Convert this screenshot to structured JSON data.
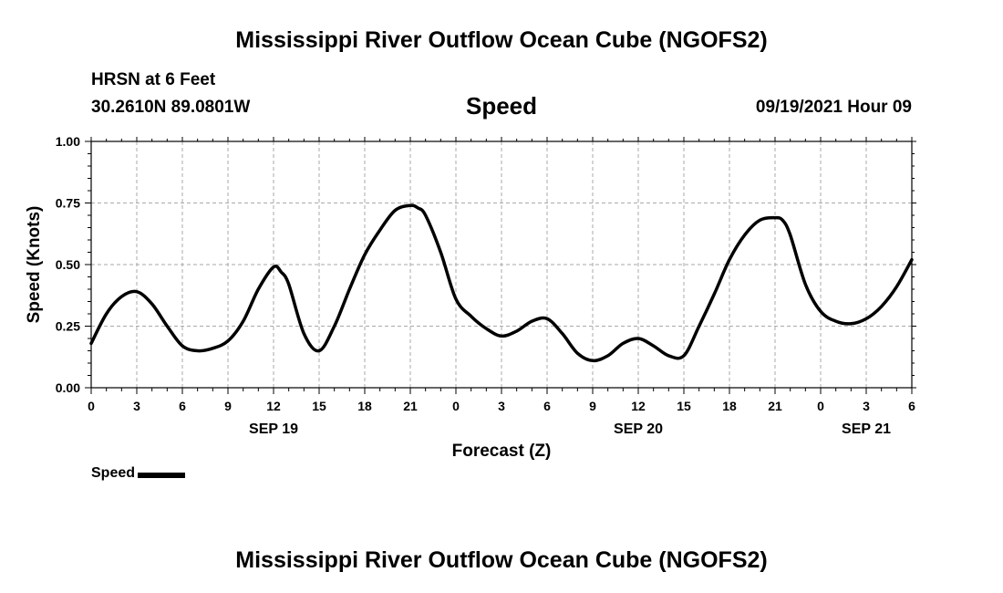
{
  "header": {
    "title": "Mississippi River Outflow Ocean Cube (NGOFS2)",
    "station": "HRSN at 6 Feet",
    "coords": "30.2610N  89.0801W",
    "chart_title": "Speed",
    "datetime": "09/19/2021 Hour 09"
  },
  "footer": {
    "title": "Mississippi River Outflow Ocean Cube (NGOFS2)"
  },
  "legend": {
    "label": "Speed",
    "color": "#000000"
  },
  "chart_data": {
    "type": "line",
    "title": "Speed",
    "xlabel": "Forecast (Z)",
    "ylabel": "Speed (Knots)",
    "xlim": [
      0,
      54
    ],
    "ylim": [
      0.0,
      1.0
    ],
    "yticks": [
      "0.00",
      "0.25",
      "0.50",
      "0.75",
      "1.00"
    ],
    "xticks": [
      {
        "x": 0,
        "label": "0"
      },
      {
        "x": 3,
        "label": "3"
      },
      {
        "x": 6,
        "label": "6"
      },
      {
        "x": 9,
        "label": "9"
      },
      {
        "x": 12,
        "label": "12"
      },
      {
        "x": 15,
        "label": "15"
      },
      {
        "x": 18,
        "label": "18"
      },
      {
        "x": 21,
        "label": "21"
      },
      {
        "x": 24,
        "label": "0"
      },
      {
        "x": 27,
        "label": "3"
      },
      {
        "x": 30,
        "label": "6"
      },
      {
        "x": 33,
        "label": "9"
      },
      {
        "x": 36,
        "label": "12"
      },
      {
        "x": 39,
        "label": "15"
      },
      {
        "x": 42,
        "label": "18"
      },
      {
        "x": 45,
        "label": "21"
      },
      {
        "x": 48,
        "label": "0"
      },
      {
        "x": 51,
        "label": "3"
      },
      {
        "x": 54,
        "label": "6"
      }
    ],
    "date_labels": [
      {
        "x": 12,
        "label": "SEP 19"
      },
      {
        "x": 36,
        "label": "SEP 20"
      },
      {
        "x": 51,
        "label": "SEP 21"
      }
    ],
    "grid": true,
    "series": [
      {
        "name": "Speed",
        "color": "#000000",
        "x": [
          0,
          1,
          2,
          3,
          4,
          5,
          6,
          7,
          8,
          9,
          10,
          11,
          12,
          12.5,
          13,
          14,
          15,
          16,
          17,
          18,
          19,
          20,
          21,
          21.5,
          22,
          23,
          24,
          25,
          26,
          27,
          28,
          29,
          30,
          31,
          32,
          33,
          34,
          35,
          36,
          37,
          38,
          39,
          40,
          41,
          42,
          43,
          44,
          45,
          45.5,
          46,
          47,
          48,
          49,
          50,
          51,
          52,
          53,
          54
        ],
        "values": [
          0.18,
          0.3,
          0.37,
          0.39,
          0.34,
          0.25,
          0.17,
          0.15,
          0.16,
          0.19,
          0.27,
          0.4,
          0.49,
          0.47,
          0.42,
          0.22,
          0.15,
          0.25,
          0.4,
          0.54,
          0.64,
          0.72,
          0.74,
          0.73,
          0.7,
          0.55,
          0.36,
          0.29,
          0.24,
          0.21,
          0.23,
          0.27,
          0.28,
          0.22,
          0.14,
          0.11,
          0.13,
          0.18,
          0.2,
          0.17,
          0.13,
          0.13,
          0.25,
          0.38,
          0.52,
          0.62,
          0.68,
          0.69,
          0.68,
          0.62,
          0.42,
          0.31,
          0.27,
          0.26,
          0.28,
          0.33,
          0.41,
          0.52
        ]
      }
    ]
  }
}
